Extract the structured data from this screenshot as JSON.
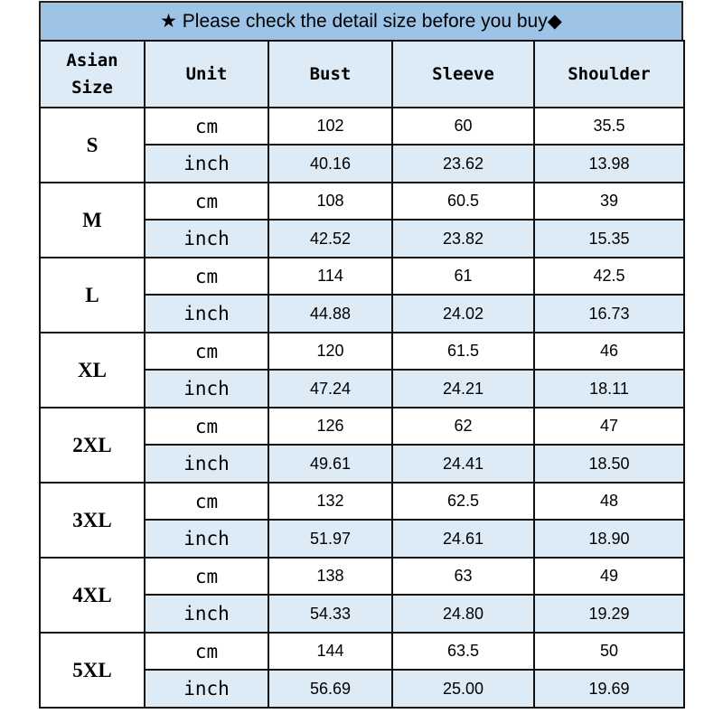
{
  "title": "★ Please check the detail size before you buy◆",
  "colors": {
    "title_bg": "#9dc3e6",
    "header_bg": "#ddebf7",
    "inch_row_bg": "#ddebf7"
  },
  "headers": [
    "Asian Size",
    "Unit",
    "Bust",
    "Sleeve",
    "Shoulder"
  ],
  "rows": [
    {
      "size": "S",
      "cm": [
        "102",
        "60",
        "35.5"
      ],
      "inch": [
        "40.16",
        "23.62",
        "13.98"
      ]
    },
    {
      "size": "M",
      "cm": [
        "108",
        "60.5",
        "39"
      ],
      "inch": [
        "42.52",
        "23.82",
        "15.35"
      ]
    },
    {
      "size": "L",
      "cm": [
        "114",
        "61",
        "42.5"
      ],
      "inch": [
        "44.88",
        "24.02",
        "16.73"
      ]
    },
    {
      "size": "XL",
      "cm": [
        "120",
        "61.5",
        "46"
      ],
      "inch": [
        "47.24",
        "24.21",
        "18.11"
      ]
    },
    {
      "size": "2XL",
      "cm": [
        "126",
        "62",
        "47"
      ],
      "inch": [
        "49.61",
        "24.41",
        "18.50"
      ]
    },
    {
      "size": "3XL",
      "cm": [
        "132",
        "62.5",
        "48"
      ],
      "inch": [
        "51.97",
        "24.61",
        "18.90"
      ]
    },
    {
      "size": "4XL",
      "cm": [
        "138",
        "63",
        "49"
      ],
      "inch": [
        "54.33",
        "24.80",
        "19.29"
      ]
    },
    {
      "size": "5XL",
      "cm": [
        "144",
        "63.5",
        "50"
      ],
      "inch": [
        "56.69",
        "25.00",
        "19.69"
      ]
    }
  ],
  "units": {
    "cm": "cm",
    "inch": "inch"
  }
}
